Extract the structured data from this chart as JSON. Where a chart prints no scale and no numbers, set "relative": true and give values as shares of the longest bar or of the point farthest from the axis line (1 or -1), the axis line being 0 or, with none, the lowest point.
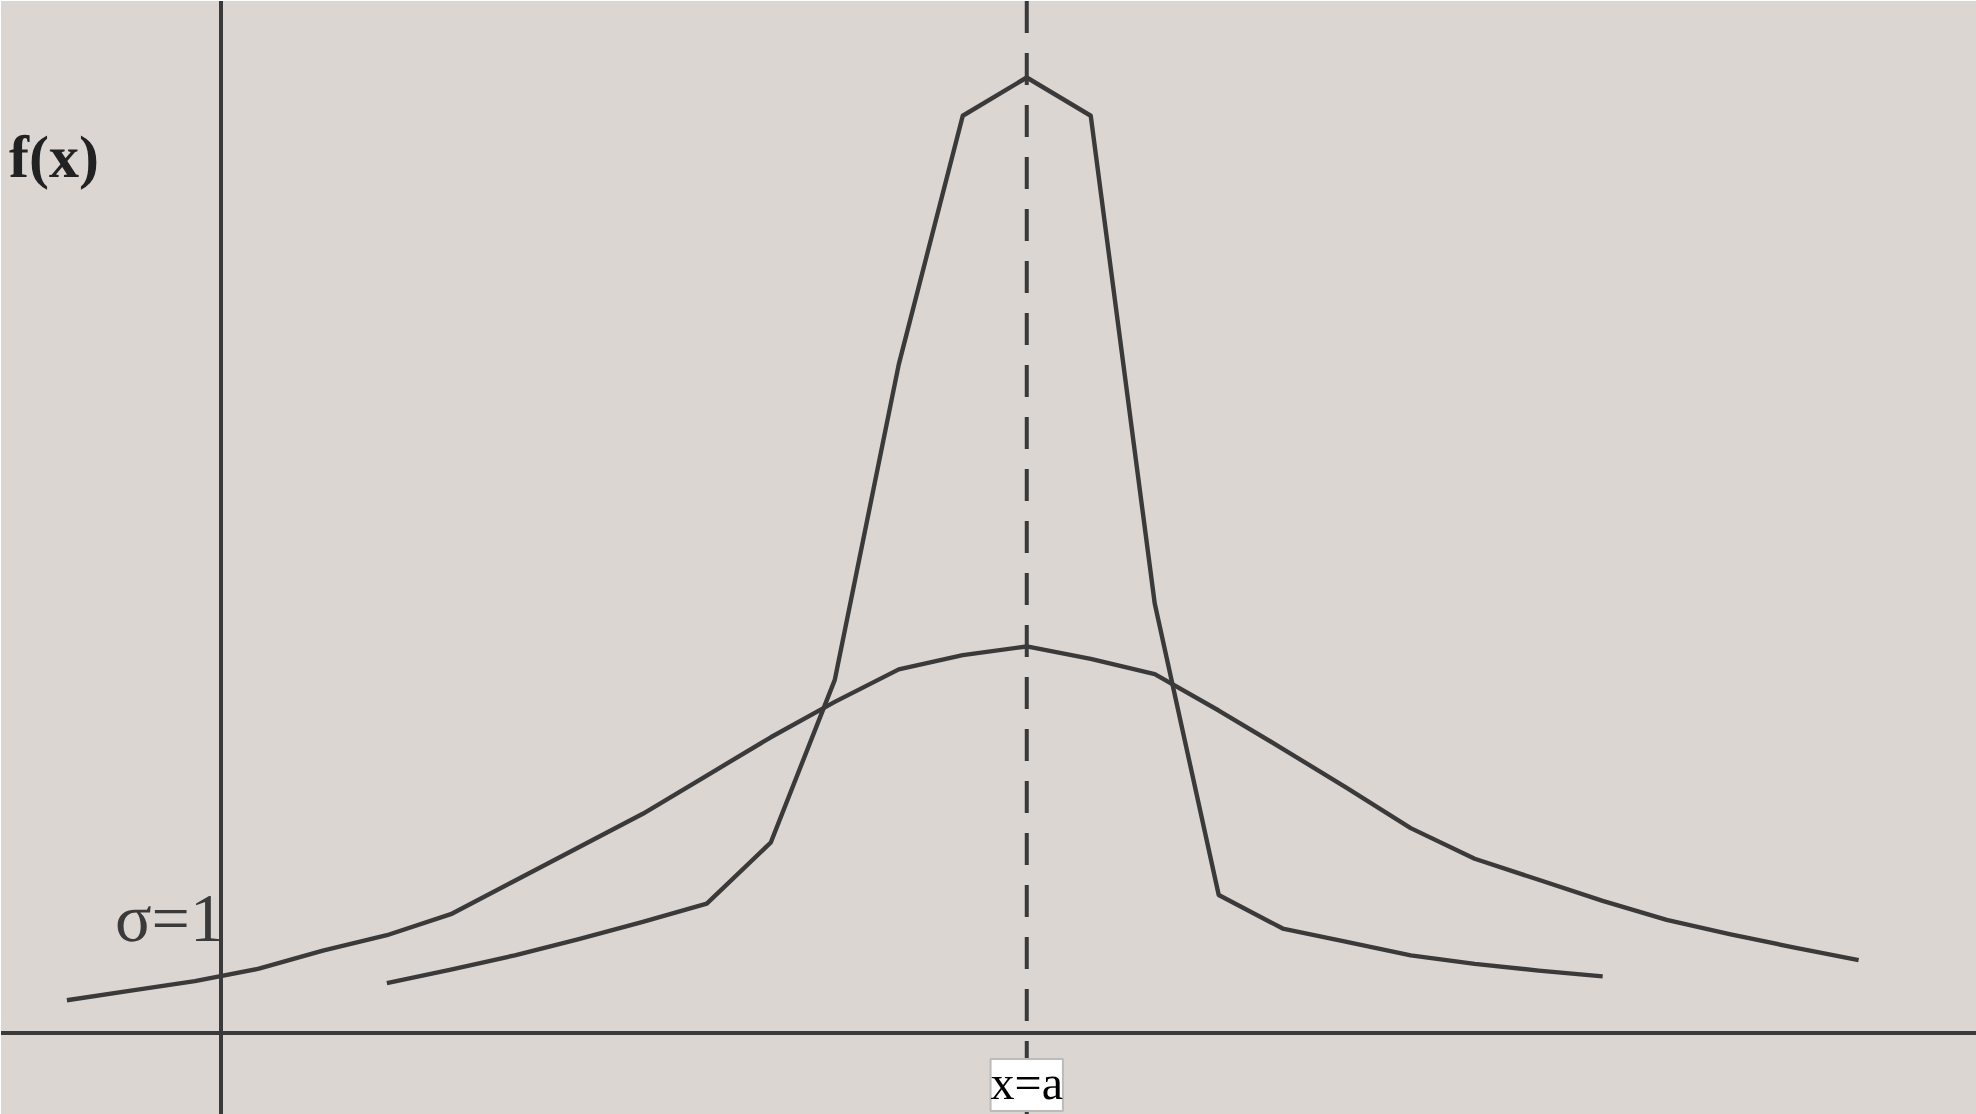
{
  "chart_data": {
    "type": "line",
    "relative": true,
    "ylabel": "f(x)",
    "grid": false,
    "legend": false,
    "marker": "none",
    "categories": [
      null,
      null,
      null,
      null,
      null,
      null,
      null,
      null,
      null,
      null,
      null,
      null,
      null,
      null,
      null,
      null,
      null,
      null,
      null,
      null,
      null,
      null,
      null,
      null,
      null,
      null,
      null,
      null,
      null
    ],
    "series": [
      {
        "name": "σ=1",
        "color": "#3a3a3a",
        "values": [
          0.035,
          0.045,
          0.055,
          0.068,
          0.087,
          0.103,
          0.125,
          0.16,
          0.195,
          0.23,
          0.27,
          0.31,
          0.347,
          0.381,
          0.396,
          0.405,
          0.392,
          0.376,
          0.338,
          0.298,
          0.257,
          0.215,
          0.183,
          0.161,
          0.139,
          0.119,
          0.104,
          0.09,
          0.077
        ]
      },
      {
        "color": "#3a3a3a",
        "values": [
          null,
          null,
          null,
          null,
          null,
          0.053,
          0.067,
          0.082,
          0.099,
          0.117,
          0.136,
          0.2,
          0.37,
          0.7,
          0.96,
          1,
          0.96,
          0.45,
          0.145,
          0.11,
          0.096,
          0.082,
          0.073,
          0.066,
          0.06,
          null,
          null,
          null,
          null
        ]
      }
    ],
    "ref_lines": [
      {
        "axis": "x",
        "label": "x=a",
        "line_style": "dashed",
        "color": "#3a3a3a"
      }
    ]
  }
}
